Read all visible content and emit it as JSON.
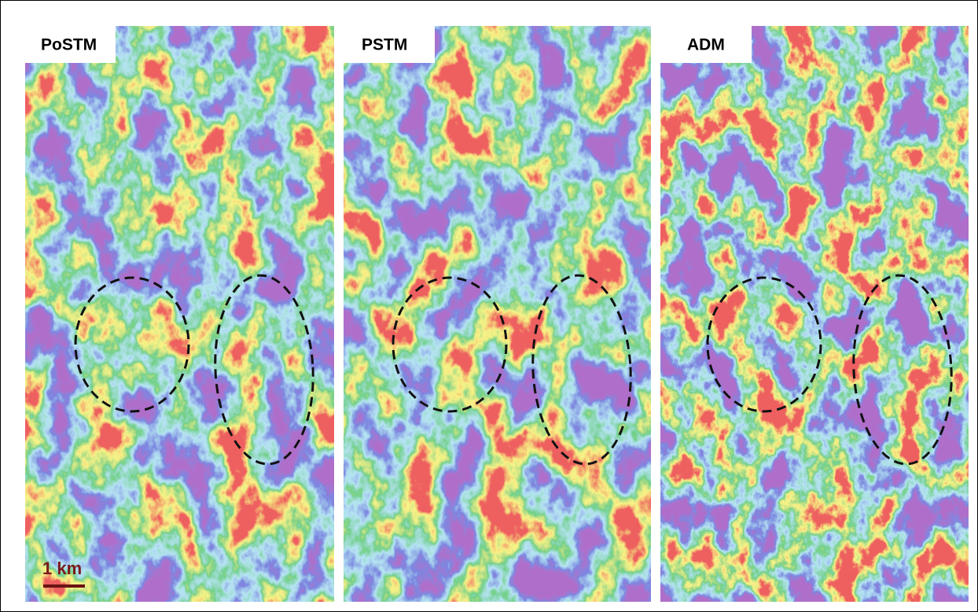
{
  "panels": [
    {
      "label": "PoSTM"
    },
    {
      "label": "PSTM"
    },
    {
      "label": "ADM"
    }
  ],
  "scale_bar": {
    "label": "1 km"
  }
}
